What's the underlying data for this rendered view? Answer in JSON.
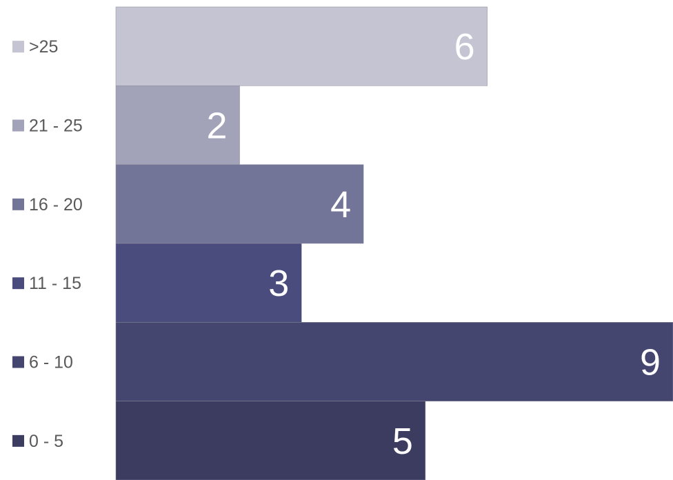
{
  "chart_data": {
    "type": "bar",
    "orientation": "horizontal",
    "title": "",
    "xlabel": "",
    "ylabel": "",
    "categories": [
      ">25",
      "21 - 25",
      "16 - 20",
      "11 - 15",
      "6 - 10",
      "0 - 5"
    ],
    "values": [
      6,
      2,
      4,
      3,
      9,
      5
    ],
    "value_labels": [
      "6",
      "2",
      "4",
      "3",
      "9",
      "5"
    ],
    "colors": [
      "#c4c4d2",
      "#a2a2b8",
      "#737598",
      "#4b4c7e",
      "#45466f",
      "#3c3b60"
    ],
    "xlim": [
      0,
      9
    ],
    "grid": false,
    "legend": "left"
  }
}
